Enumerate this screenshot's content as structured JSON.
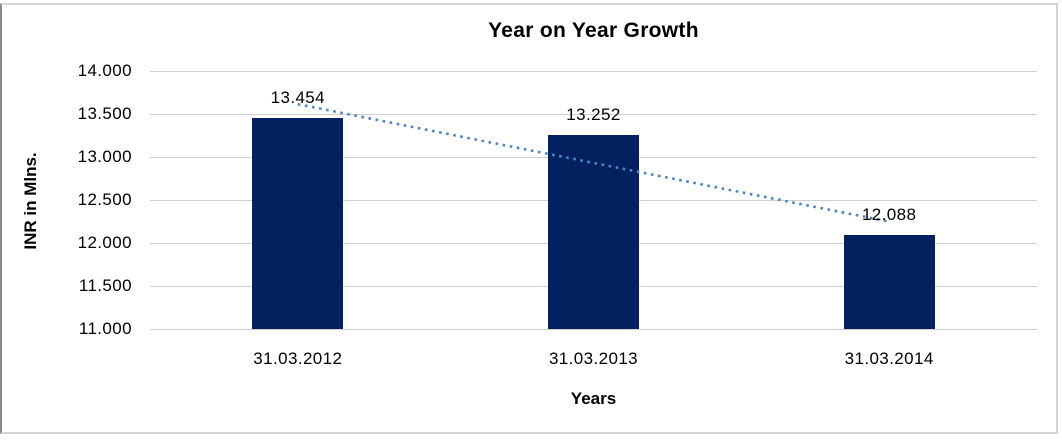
{
  "window": {
    "background": "#ffffff",
    "frame_border_color": "#d4d4d4",
    "frame_border_left_color": "#8a8a8a"
  },
  "chart_data": {
    "type": "bar",
    "title": "Year on Year Growth",
    "xlabel": "Years",
    "ylabel": "INR in Mlns.",
    "categories": [
      "31.03.2012",
      "31.03.2013",
      "31.03.2014"
    ],
    "values": [
      13.454,
      13.252,
      12.088
    ],
    "value_labels": [
      "13.454",
      "13.252",
      "12.088"
    ],
    "ylim": [
      11.0,
      14.0
    ],
    "ytick_step": 0.5,
    "ytick_labels": [
      "11.000",
      "11.500",
      "12.000",
      "12.500",
      "13.000",
      "13.500",
      "14.000"
    ],
    "grid": true,
    "legend": false,
    "bar_color": "#02215E",
    "gridline_color": "#d0d0d0",
    "text_color": "#000000",
    "trendline": {
      "type": "linear",
      "style": "dotted",
      "color": "#4a86c8"
    }
  }
}
